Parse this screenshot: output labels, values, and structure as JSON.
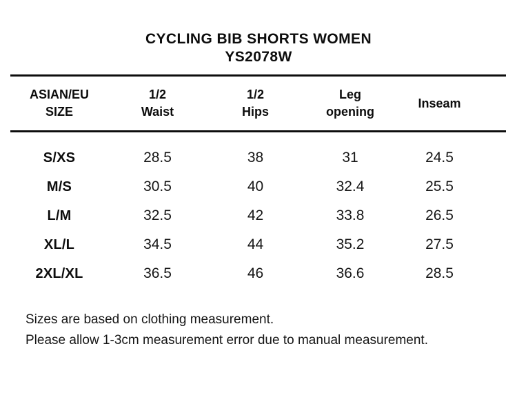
{
  "header": {
    "title": "CYCLING BIB SHORTS WOMEN",
    "product_code": "YS2078W"
  },
  "table": {
    "columns": [
      {
        "line1": "ASIAN/EU",
        "line2": "SIZE"
      },
      {
        "line1": "1/2",
        "line2": "Waist"
      },
      {
        "line1": "1/2",
        "line2": "Hips"
      },
      {
        "line1": "Leg",
        "line2": "opening"
      },
      {
        "line1": "Inseam",
        "line2": ""
      }
    ],
    "rows": [
      {
        "size": "S/XS",
        "waist": "28.5",
        "hips": "38",
        "leg_opening": "31",
        "inseam": "24.5"
      },
      {
        "size": "M/S",
        "waist": "30.5",
        "hips": "40",
        "leg_opening": "32.4",
        "inseam": "25.5"
      },
      {
        "size": "L/M",
        "waist": "32.5",
        "hips": "42",
        "leg_opening": "33.8",
        "inseam": "26.5"
      },
      {
        "size": "XL/L",
        "waist": "34.5",
        "hips": "44",
        "leg_opening": "35.2",
        "inseam": "27.5"
      },
      {
        "size": "2XL/XL",
        "waist": "36.5",
        "hips": "46",
        "leg_opening": "36.6",
        "inseam": "28.5"
      }
    ]
  },
  "notes": {
    "line1": "Sizes are based on clothing measurement.",
    "line2": "Please allow 1-3cm measurement error due to manual measurement."
  },
  "colors": {
    "text": "#111111",
    "rule": "#0d0d0d",
    "background": "#ffffff"
  }
}
